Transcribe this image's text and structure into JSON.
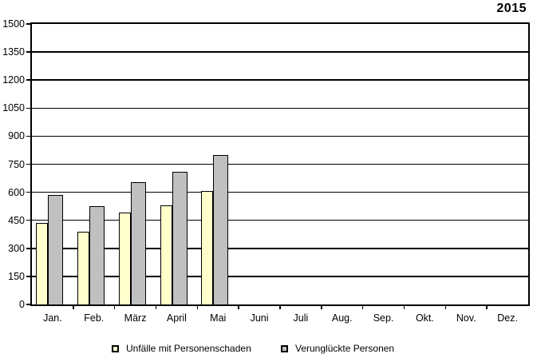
{
  "title": "2015",
  "chart_data": {
    "type": "bar",
    "title": "2015",
    "xlabel": "",
    "ylabel": "",
    "ylim": [
      0,
      1500
    ],
    "yticks": [
      0,
      150,
      300,
      450,
      600,
      750,
      900,
      1050,
      1200,
      1350,
      1500
    ],
    "grid": true,
    "legend_position": "bottom",
    "categories": [
      "Jan.",
      "Feb.",
      "März",
      "April",
      "Mai",
      "Juni",
      "Juli",
      "Aug.",
      "Sep.",
      "Okt.",
      "Nov.",
      "Dez."
    ],
    "series": [
      {
        "name": "Unfälle mit Personenschaden",
        "color": "#FFFFCC",
        "values": [
          435,
          390,
          490,
          530,
          605,
          null,
          null,
          null,
          null,
          null,
          null,
          null
        ]
      },
      {
        "name": "Verunglückte Personen",
        "color": "#C0C0C0",
        "values": [
          585,
          525,
          655,
          710,
          800,
          null,
          null,
          null,
          null,
          null,
          null,
          null
        ]
      }
    ]
  }
}
